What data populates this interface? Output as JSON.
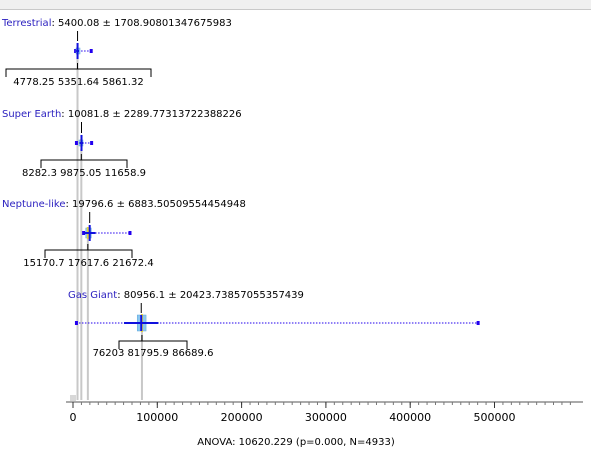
{
  "chart_data": {
    "type": "box",
    "groups": [
      {
        "name": "Terrestrial",
        "summary": "5400.08 ± 1708.90801347675983",
        "q1": "4778.25",
        "median": "5351.64",
        "q3": "5861.32",
        "mean": 5400.08,
        "sd": 1708.9080134767598,
        "q1_v": 4778.25,
        "median_v": 5351.64,
        "q3_v": 5861.32,
        "min": 2500,
        "max": 21000
      },
      {
        "name": "Super Earth",
        "summary": "10081.8 ± 2289.77313722388226",
        "q1": "8282.3",
        "median": "9875.05",
        "q3": "11658.9",
        "mean": 10081.8,
        "sd": 2289.7731372238823,
        "q1_v": 8282.3,
        "median_v": 9875.05,
        "q3_v": 11658.9,
        "min": 3500,
        "max": 21500
      },
      {
        "name": "Neptune-like",
        "summary": "19796.6 ± 6883.50509554454948",
        "q1": "15170.7",
        "median": "17617.6",
        "q3": "21672.4",
        "mean": 19796.6,
        "sd": 6883.5050955445495,
        "q1_v": 15170.7,
        "median_v": 17617.6,
        "q3_v": 21672.4,
        "min": 12000,
        "max": 67000
      },
      {
        "name": "Gas Giant",
        "summary": "80956.1 ± 20423.73857055357439",
        "q1": "76203",
        "median": "81795.9",
        "q3": "86689.6",
        "mean": 80956.1,
        "sd": 20423.738570553574,
        "q1_v": 76203,
        "median_v": 81795.9,
        "q3_v": 86689.6,
        "min": 3500,
        "max": 480000
      }
    ],
    "x_ticks": [
      0,
      100000,
      200000,
      300000,
      400000,
      500000
    ],
    "x_tick_labels": [
      "0",
      "100000",
      "200000",
      "300000",
      "400000",
      "500000"
    ],
    "xlim": [
      0,
      590000
    ],
    "footer": "ANOVA: 10620.229 (p=0.000, N=4933)",
    "colors": {
      "name": "#2a1fbf",
      "whisker": "#2200ee",
      "mean_cross": "#1010dd",
      "box": "#8cc8f0",
      "median": "#e8d23a",
      "guide": "#c8c8c8"
    }
  }
}
